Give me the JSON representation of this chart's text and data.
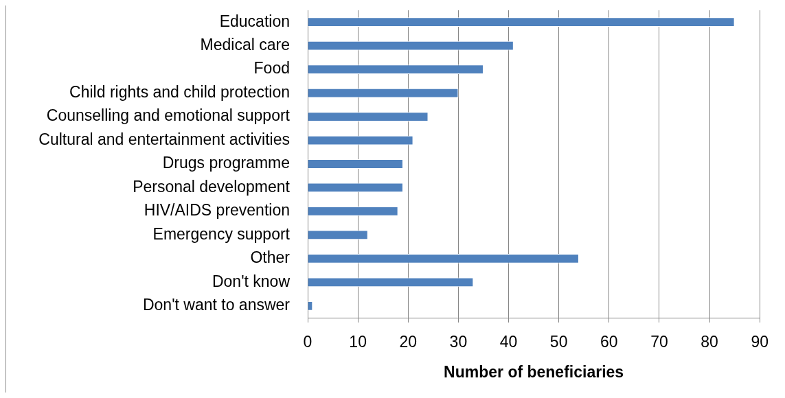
{
  "chart_data": {
    "type": "bar",
    "orientation": "horizontal",
    "categories": [
      "Education",
      "Medical care",
      "Food",
      "Child rights and child protection",
      "Counselling and emotional support",
      "Cultural and entertainment activities",
      "Drugs programme",
      "Personal development",
      "HIV/AIDS prevention",
      "Emergency support",
      "Other",
      "Don't know",
      "Don't want to answer"
    ],
    "values": [
      85,
      41,
      35,
      30,
      24,
      21,
      19,
      19,
      18,
      12,
      54,
      33,
      1
    ],
    "color": "#4f81bd",
    "xlabel": "Number of beneficiaries",
    "xlim": [
      0,
      90
    ],
    "xticks": [
      0,
      10,
      20,
      30,
      40,
      50,
      60,
      70,
      80,
      90
    ],
    "grid": "x"
  }
}
